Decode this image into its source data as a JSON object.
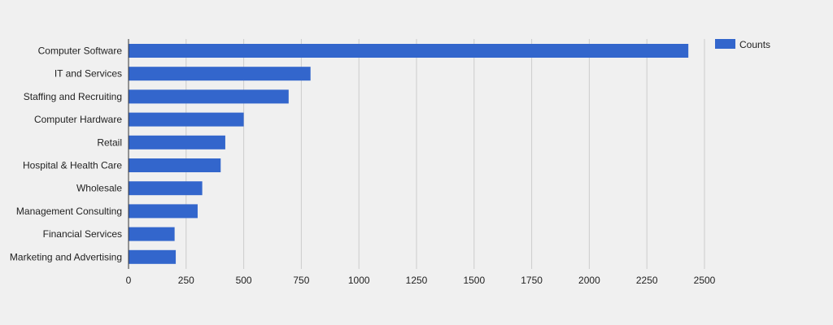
{
  "chart_data": {
    "type": "bar",
    "orientation": "horizontal",
    "categories": [
      "Computer Software",
      "IT and Services",
      "Staffing and Recruiting",
      "Computer Hardware",
      "Retail",
      "Hospital & Health Care",
      "Wholesale",
      "Management Consulting",
      "Financial Services",
      "Marketing and Advertising"
    ],
    "series": [
      {
        "name": "Counts",
        "color": "#3366cc",
        "values": [
          2430,
          790,
          695,
          500,
          420,
          400,
          320,
          300,
          200,
          205
        ]
      }
    ],
    "xlim": [
      0,
      2500
    ],
    "xticks": [
      "0",
      "250",
      "500",
      "750",
      "1000",
      "1250",
      "1500",
      "1750",
      "2000",
      "2250",
      "2500"
    ],
    "grid": "vertical",
    "legend_position": "top-right"
  }
}
